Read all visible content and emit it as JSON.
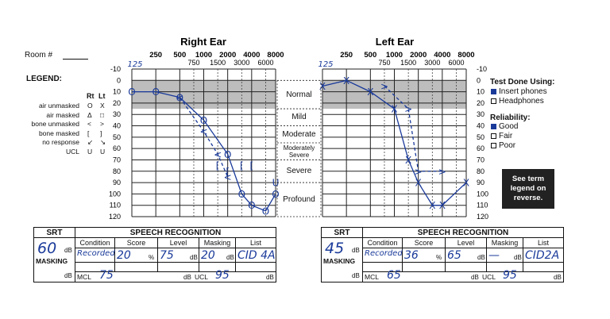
{
  "room_label": "Room #",
  "legend": {
    "title": "LEGEND:",
    "col_rt": "Rt",
    "col_lt": "Lt",
    "rows": [
      {
        "label": "air unmasked",
        "rt": "O",
        "lt": "X"
      },
      {
        "label": "air masked",
        "rt": "Δ",
        "lt": "□"
      },
      {
        "label": "bone unmasked",
        "rt": "<",
        "lt": ">"
      },
      {
        "label": "bone masked",
        "rt": "[",
        "lt": "]"
      },
      {
        "label": "no response",
        "rt": "↙",
        "lt": "↘"
      },
      {
        "label": "UCL",
        "rt": "U",
        "lt": "U"
      }
    ]
  },
  "right_ear": {
    "title": "Right Ear",
    "freq_top": [
      "250",
      "500",
      "1000",
      "2000",
      "4000",
      "8000"
    ],
    "freq_bottom": [
      "750",
      "1500",
      "3000",
      "6000"
    ],
    "freq_handwritten": "125"
  },
  "left_ear": {
    "title": "Left Ear",
    "freq_top": [
      "250",
      "500",
      "1000",
      "2000",
      "4000",
      "8000"
    ],
    "freq_bottom": [
      "750",
      "1500",
      "3000",
      "6000"
    ],
    "freq_handwritten": "125"
  },
  "db_labels": [
    "-10",
    "0",
    "10",
    "20",
    "30",
    "40",
    "50",
    "60",
    "70",
    "80",
    "90",
    "100",
    "110",
    "120"
  ],
  "severity": [
    "Normal",
    "Mild",
    "Moderate",
    "Moderately Severe",
    "Severe",
    "Profound"
  ],
  "test_done": {
    "title": "Test Done Using:",
    "options": [
      {
        "label": "Insert phones",
        "checked": true
      },
      {
        "label": "Headphones",
        "checked": false
      }
    ]
  },
  "reliability": {
    "title": "Reliability:",
    "options": [
      {
        "label": "Good",
        "checked": true
      },
      {
        "label": "Fair",
        "checked": false
      },
      {
        "label": "Poor",
        "checked": false
      }
    ]
  },
  "note": "See term legend on reverse.",
  "right_speech": {
    "srt_label": "SRT",
    "srt_value": "60",
    "db": "dB",
    "masking": "MASKING",
    "header": "SPEECH RECOGNITION",
    "cols": [
      "Condition",
      "Score",
      "Level",
      "Masking",
      "List"
    ],
    "condition": "Recorded",
    "score": "20",
    "pct": "%",
    "level": "75",
    "masking_val": "20",
    "list": "CID 4A",
    "mcl_label": "MCL",
    "mcl": "75",
    "ucl_label": "UCL",
    "ucl": "95"
  },
  "left_speech": {
    "srt_label": "SRT",
    "srt_value": "45",
    "db": "dB",
    "masking": "MASKING",
    "header": "SPEECH RECOGNITION",
    "cols": [
      "Condition",
      "Score",
      "Level",
      "Masking",
      "List"
    ],
    "condition": "Recorded",
    "score": "36",
    "pct": "%",
    "level": "65",
    "masking_val": "—",
    "list": "CID2A",
    "mcl_label": "MCL",
    "mcl": "65",
    "ucl_label": "UCL",
    "ucl": "95"
  },
  "chart_data": [
    {
      "type": "line",
      "title": "Right Ear",
      "xlabel": "",
      "ylabel": "",
      "x_scale": "log",
      "ylim": [
        -10,
        120
      ],
      "y_inverted": true,
      "series": [
        {
          "symbol": "O",
          "color": "#1a3a9a",
          "x": [
            125,
            250,
            500,
            1000,
            2000,
            3000,
            4000,
            6000,
            8000
          ],
          "y": [
            10,
            10,
            15,
            35,
            65,
            100,
            110,
            115,
            100
          ]
        },
        {
          "symbol": "<",
          "color": "#1a3a9a",
          "x": [
            500,
            1000,
            1500,
            2000
          ],
          "y": [
            15,
            45,
            65,
            85
          ]
        },
        {
          "symbol": "[",
          "color": "#1a3a9a",
          "x": [
            1500,
            2000,
            3000,
            4000
          ],
          "y": [
            75,
            80,
            75,
            75
          ]
        },
        {
          "symbol": "U",
          "color": "#1a3a9a",
          "x": [
            8000
          ],
          "y": [
            90
          ]
        }
      ]
    },
    {
      "type": "line",
      "title": "Left Ear",
      "xlabel": "",
      "ylabel": "",
      "x_scale": "log",
      "ylim": [
        -10,
        120
      ],
      "y_inverted": true,
      "series": [
        {
          "symbol": "X",
          "color": "#1a3a9a",
          "x": [
            125,
            250,
            500,
            1000,
            1500,
            2000,
            3000,
            4000,
            8000
          ],
          "y": [
            5,
            0,
            10,
            25,
            70,
            90,
            110,
            110,
            90
          ]
        },
        {
          "symbol": ">",
          "color": "#1a3a9a",
          "x": [
            750,
            1500,
            2000,
            4000
          ],
          "y": [
            5,
            25,
            80,
            80
          ]
        }
      ]
    }
  ]
}
